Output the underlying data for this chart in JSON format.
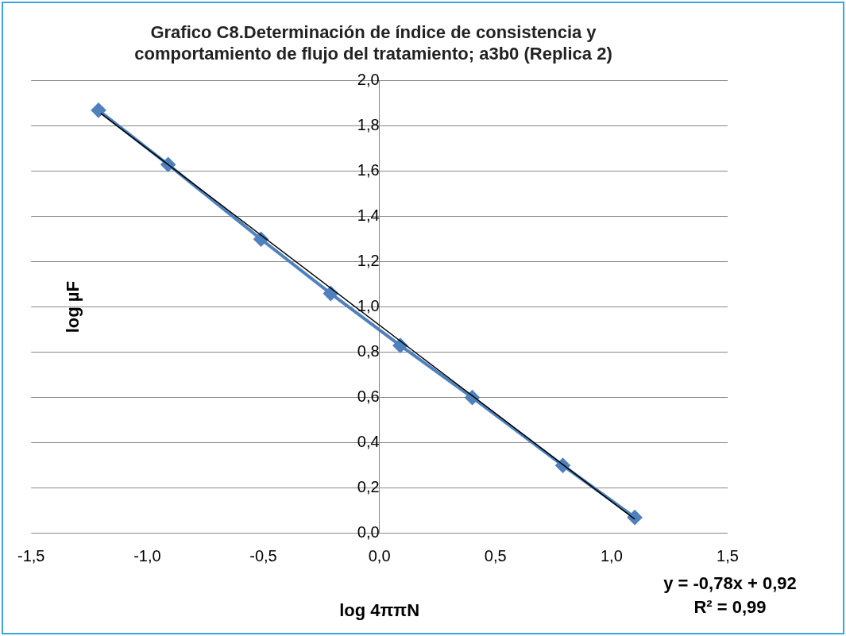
{
  "chart_data": {
    "type": "line",
    "title": "Grafico C8.Determinación de índice de consistencia y comportamiento de flujo del tratamiento; a3b0 (Replica 2)",
    "xlabel": "log 4ππN",
    "ylabel": "log µF",
    "series": [
      {
        "type": "line",
        "color": "#4f81bd",
        "marker": "diamond",
        "x": [
          -1.21,
          -0.91,
          -0.51,
          -0.21,
          0.09,
          0.4,
          0.79,
          1.1
        ],
        "values": [
          1.87,
          1.63,
          1.3,
          1.06,
          0.83,
          0.6,
          0.3,
          0.07
        ]
      },
      {
        "type": "line",
        "color": "#000000",
        "marker": "none",
        "x": [
          -1.2,
          1.1
        ],
        "values": [
          1.856,
          0.062
        ]
      }
    ],
    "xlim": [
      -1.5,
      1.5
    ],
    "xticks": [
      {
        "value": -1.5,
        "label": "-1,5"
      },
      {
        "value": -1,
        "label": "-1,0"
      },
      {
        "value": -0.5,
        "label": "-0,5"
      },
      {
        "value": 0,
        "label": "0,0"
      },
      {
        "value": 0.5,
        "label": "0,5"
      },
      {
        "value": 1,
        "label": "1,0"
      },
      {
        "value": 1.5,
        "label": "1,5"
      }
    ],
    "ylim": [
      0,
      2
    ],
    "yticks": [
      {
        "value": 0,
        "label": "0,0"
      },
      {
        "value": 0.2,
        "label": "0,2"
      },
      {
        "value": 0.4,
        "label": "0,4"
      },
      {
        "value": 0.6,
        "label": "0,6"
      },
      {
        "value": 0.8,
        "label": "0,8"
      },
      {
        "value": 1,
        "label": "1,0"
      },
      {
        "value": 1.2,
        "label": "1,2"
      },
      {
        "value": 1.4,
        "label": "1,4"
      },
      {
        "value": 1.6,
        "label": "1,6"
      },
      {
        "value": 1.8,
        "label": "1,8"
      },
      {
        "value": 2,
        "label": "2,0"
      }
    ],
    "grid": "y",
    "legend": false,
    "annotations": [
      "y = -0,78x + 0,92",
      "R² = 0,99"
    ]
  }
}
